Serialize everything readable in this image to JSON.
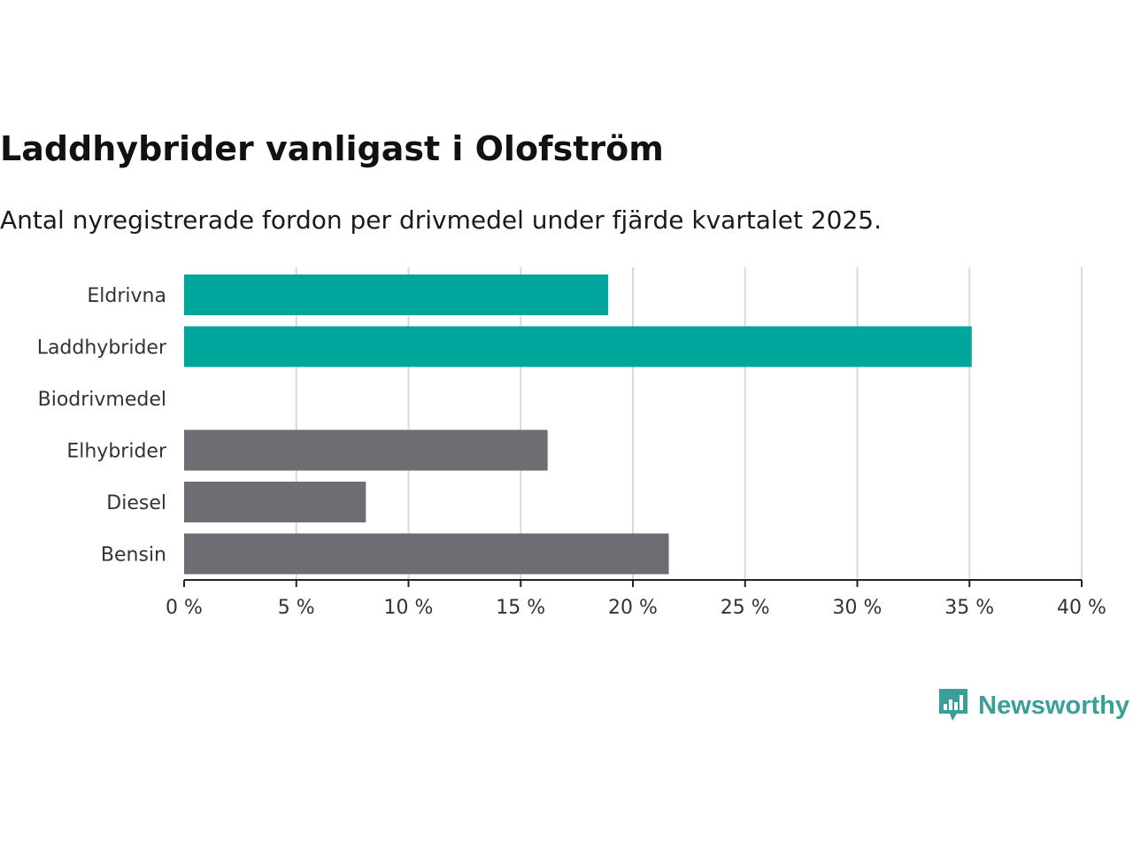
{
  "title": "Laddhybrider vanligast i Olofström",
  "subtitle": "Antal nyregistrerade fordon per drivmedel under fjärde kvartalet 2025.",
  "brand": {
    "name": "Newsworthy",
    "icon": "newsworthy-logo-icon",
    "color": "#3a9f98"
  },
  "chart_data": {
    "type": "bar",
    "orientation": "horizontal",
    "title": "Laddhybrider vanligast i Olofström",
    "subtitle": "Antal nyregistrerade fordon per drivmedel under fjärde kvartalet 2025.",
    "categories": [
      "Eldrivna",
      "Laddhybrider",
      "Biodrivmedel",
      "Elhybrider",
      "Diesel",
      "Bensin"
    ],
    "values": [
      18.9,
      35.1,
      0,
      16.2,
      8.1,
      21.6
    ],
    "colors": [
      "#00a59b",
      "#00a59b",
      "#6e6d73",
      "#6e6d73",
      "#6e6d73",
      "#6e6d73"
    ],
    "unit": "%",
    "xlim": [
      0,
      40
    ],
    "xticks": [
      0,
      5,
      10,
      15,
      20,
      25,
      30,
      35,
      40
    ],
    "xtick_labels": [
      "0 %",
      "5 %",
      "10 %",
      "15 %",
      "20 %",
      "25 %",
      "30 %",
      "35 %",
      "40 %"
    ],
    "xlabel": "",
    "ylabel": "",
    "grid": "vertical"
  }
}
